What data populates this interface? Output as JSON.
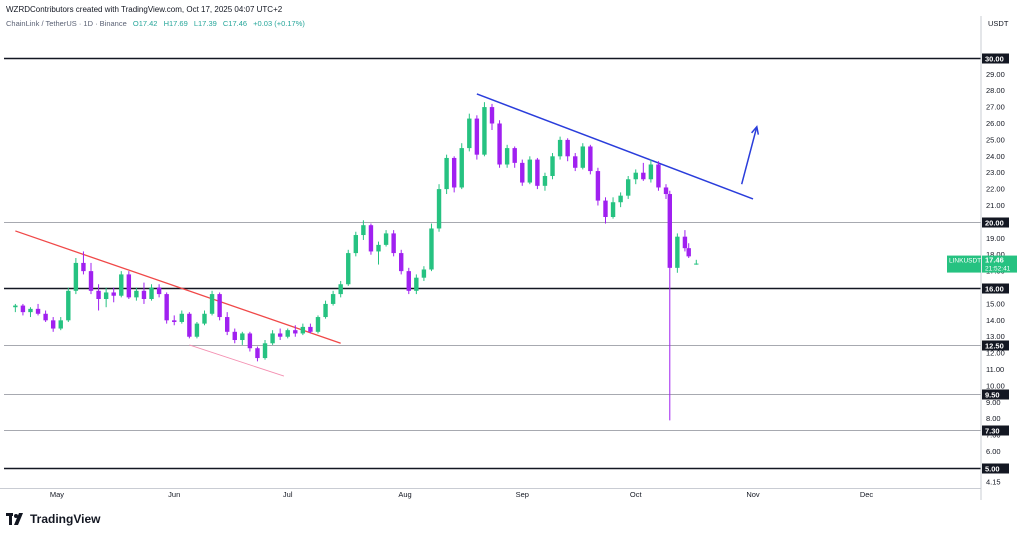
{
  "header": {
    "title": "WZRDContributors created with TradingView.com, Oct 17, 2025 04:07 UTC+2"
  },
  "ohlc": {
    "symbol": "ChainLink / TetherUS · 1D · Binance",
    "open": "O17.42",
    "high": "H17.69",
    "low": "L17.39",
    "close": "C17.46",
    "change": "+0.03 (+0.17%)"
  },
  "axis": {
    "unit": "USDT"
  },
  "price_label": {
    "symbol": "LINKUSDT",
    "price": "17.46",
    "countdown": "21:52:41"
  },
  "brand": {
    "name": "TradingView"
  },
  "colors": {
    "up": "#26c281",
    "down": "#a020f0",
    "red_line": "#f04848",
    "pink_line": "#f48fb1",
    "blue_line": "#2a3ddb",
    "level_line": "#131722",
    "price_tag": "#26c281"
  },
  "chart_data": {
    "type": "candlestick",
    "ylim": [
      3.9,
      31.7
    ],
    "y_ticks": [
      30.0,
      29.0,
      28.0,
      27.0,
      26.0,
      25.0,
      24.0,
      23.0,
      22.0,
      21.0,
      20.0,
      19.0,
      18.0,
      17.0,
      16.0,
      15.0,
      14.0,
      13.0,
      12.0,
      11.0,
      10.0,
      9.0,
      8.0,
      7.0,
      6.0,
      5.0
    ],
    "y_tick_labels": [
      "30.00",
      "29.00",
      "28.00",
      "27.00",
      "26.00",
      "25.00",
      "24.00",
      "23.00",
      "22.00",
      "21.00",
      "20.00",
      "19.00",
      "18.00",
      "17.00",
      "16.00",
      "15.00",
      "14.00",
      "13.00",
      "12.00",
      "11.00",
      "10.00",
      "9.00",
      "8.00",
      "7.00",
      "6.00",
      "5.00"
    ],
    "extra_tick": {
      "value": 4.15,
      "label": "4.15"
    },
    "x_labels": [
      {
        "label": "May",
        "date": "2025-05-01"
      },
      {
        "label": "Jun",
        "date": "2025-06-01"
      },
      {
        "label": "Jul",
        "date": "2025-07-01"
      },
      {
        "label": "Aug",
        "date": "2025-08-01"
      },
      {
        "label": "Sep",
        "date": "2025-09-01"
      },
      {
        "label": "Oct",
        "date": "2025-10-01"
      },
      {
        "label": "Nov",
        "date": "2025-11-01"
      },
      {
        "label": "Dec",
        "date": "2025-12-01"
      }
    ],
    "levels": [
      {
        "value": 30.0,
        "label": "30.00",
        "weight": "heavy"
      },
      {
        "value": 20.0,
        "label": "20.00",
        "weight": "light"
      },
      {
        "value": 16.0,
        "label": "16.00",
        "weight": "heavy"
      },
      {
        "value": 12.5,
        "label": "12.50",
        "weight": "light"
      },
      {
        "value": 9.5,
        "label": "9.50",
        "weight": "light"
      },
      {
        "value": 7.3,
        "label": "7.30",
        "weight": "light"
      },
      {
        "value": 5.0,
        "label": "5.00",
        "weight": "heavy"
      }
    ],
    "trendlines": [
      {
        "name": "red",
        "start": [
          "2025-04-20",
          19.45
        ],
        "end": [
          "2025-07-15",
          12.6
        ]
      },
      {
        "name": "pink",
        "start": [
          "2025-06-05",
          12.5
        ],
        "end": [
          "2025-06-30",
          10.6
        ]
      },
      {
        "name": "blue",
        "start": [
          "2025-08-20",
          27.8
        ],
        "end": [
          "2025-11-01",
          21.4
        ]
      }
    ],
    "arrow": {
      "start": [
        "2025-10-29",
        22.3
      ],
      "end": [
        "2025-11-02",
        25.8
      ]
    },
    "current_price": 17.46,
    "candles": [
      {
        "d": "2025-04-20",
        "o": 14.8,
        "h": 15.0,
        "l": 14.5,
        "c": 14.9
      },
      {
        "d": "2025-04-22",
        "o": 14.9,
        "h": 15.0,
        "l": 14.3,
        "c": 14.5
      },
      {
        "d": "2025-04-24",
        "o": 14.5,
        "h": 14.8,
        "l": 14.2,
        "c": 14.7
      },
      {
        "d": "2025-04-26",
        "o": 14.7,
        "h": 15.0,
        "l": 14.3,
        "c": 14.4
      },
      {
        "d": "2025-04-28",
        "o": 14.4,
        "h": 14.6,
        "l": 13.9,
        "c": 14.0
      },
      {
        "d": "2025-04-30",
        "o": 14.0,
        "h": 14.2,
        "l": 13.3,
        "c": 13.5
      },
      {
        "d": "2025-05-02",
        "o": 13.5,
        "h": 14.2,
        "l": 13.4,
        "c": 14.0
      },
      {
        "d": "2025-05-04",
        "o": 14.0,
        "h": 16.0,
        "l": 13.9,
        "c": 15.8
      },
      {
        "d": "2025-05-06",
        "o": 15.8,
        "h": 17.8,
        "l": 15.6,
        "c": 17.5
      },
      {
        "d": "2025-05-08",
        "o": 17.5,
        "h": 18.2,
        "l": 16.8,
        "c": 17.0
      },
      {
        "d": "2025-05-10",
        "o": 17.0,
        "h": 17.5,
        "l": 15.6,
        "c": 15.8
      },
      {
        "d": "2025-05-12",
        "o": 15.8,
        "h": 16.2,
        "l": 14.6,
        "c": 15.3
      },
      {
        "d": "2025-05-14",
        "o": 15.3,
        "h": 16.0,
        "l": 14.8,
        "c": 15.7
      },
      {
        "d": "2025-05-16",
        "o": 15.7,
        "h": 16.0,
        "l": 15.1,
        "c": 15.5
      },
      {
        "d": "2025-05-18",
        "o": 15.5,
        "h": 17.0,
        "l": 15.4,
        "c": 16.8
      },
      {
        "d": "2025-05-20",
        "o": 16.8,
        "h": 17.0,
        "l": 15.3,
        "c": 15.4
      },
      {
        "d": "2025-05-22",
        "o": 15.4,
        "h": 16.0,
        "l": 15.2,
        "c": 15.8
      },
      {
        "d": "2025-05-24",
        "o": 15.8,
        "h": 16.3,
        "l": 15.0,
        "c": 15.3
      },
      {
        "d": "2025-05-26",
        "o": 15.3,
        "h": 16.2,
        "l": 15.2,
        "c": 16.0
      },
      {
        "d": "2025-05-28",
        "o": 16.0,
        "h": 16.2,
        "l": 15.4,
        "c": 15.6
      },
      {
        "d": "2025-05-30",
        "o": 15.6,
        "h": 15.7,
        "l": 13.8,
        "c": 14.0
      },
      {
        "d": "2025-06-01",
        "o": 14.0,
        "h": 14.3,
        "l": 13.7,
        "c": 13.9
      },
      {
        "d": "2025-06-03",
        "o": 13.9,
        "h": 14.6,
        "l": 13.8,
        "c": 14.4
      },
      {
        "d": "2025-06-05",
        "o": 14.4,
        "h": 14.5,
        "l": 12.9,
        "c": 13.0
      },
      {
        "d": "2025-06-07",
        "o": 13.0,
        "h": 13.9,
        "l": 12.9,
        "c": 13.8
      },
      {
        "d": "2025-06-09",
        "o": 13.8,
        "h": 14.6,
        "l": 13.7,
        "c": 14.4
      },
      {
        "d": "2025-06-11",
        "o": 14.4,
        "h": 15.8,
        "l": 14.3,
        "c": 15.6
      },
      {
        "d": "2025-06-13",
        "o": 15.6,
        "h": 15.7,
        "l": 14.0,
        "c": 14.2
      },
      {
        "d": "2025-06-15",
        "o": 14.2,
        "h": 14.5,
        "l": 13.1,
        "c": 13.3
      },
      {
        "d": "2025-06-17",
        "o": 13.3,
        "h": 13.5,
        "l": 12.6,
        "c": 12.8
      },
      {
        "d": "2025-06-19",
        "o": 12.8,
        "h": 13.3,
        "l": 12.5,
        "c": 13.2
      },
      {
        "d": "2025-06-21",
        "o": 13.2,
        "h": 13.3,
        "l": 12.1,
        "c": 12.3
      },
      {
        "d": "2025-06-23",
        "o": 12.3,
        "h": 12.4,
        "l": 11.5,
        "c": 11.7
      },
      {
        "d": "2025-06-25",
        "o": 11.7,
        "h": 12.8,
        "l": 11.6,
        "c": 12.6
      },
      {
        "d": "2025-06-27",
        "o": 12.6,
        "h": 13.4,
        "l": 12.5,
        "c": 13.2
      },
      {
        "d": "2025-06-29",
        "o": 13.2,
        "h": 13.5,
        "l": 12.8,
        "c": 13.0
      },
      {
        "d": "2025-07-01",
        "o": 13.0,
        "h": 13.5,
        "l": 12.9,
        "c": 13.4
      },
      {
        "d": "2025-07-03",
        "o": 13.4,
        "h": 13.7,
        "l": 13.0,
        "c": 13.2
      },
      {
        "d": "2025-07-05",
        "o": 13.2,
        "h": 13.8,
        "l": 13.1,
        "c": 13.6
      },
      {
        "d": "2025-07-07",
        "o": 13.6,
        "h": 13.8,
        "l": 13.2,
        "c": 13.3
      },
      {
        "d": "2025-07-09",
        "o": 13.3,
        "h": 14.3,
        "l": 13.2,
        "c": 14.2
      },
      {
        "d": "2025-07-11",
        "o": 14.2,
        "h": 15.2,
        "l": 14.1,
        "c": 15.0
      },
      {
        "d": "2025-07-13",
        "o": 15.0,
        "h": 15.8,
        "l": 14.9,
        "c": 15.6
      },
      {
        "d": "2025-07-15",
        "o": 15.6,
        "h": 16.4,
        "l": 15.4,
        "c": 16.2
      },
      {
        "d": "2025-07-17",
        "o": 16.2,
        "h": 18.3,
        "l": 16.1,
        "c": 18.1
      },
      {
        "d": "2025-07-19",
        "o": 18.1,
        "h": 19.4,
        "l": 17.9,
        "c": 19.2
      },
      {
        "d": "2025-07-21",
        "o": 19.2,
        "h": 20.1,
        "l": 18.9,
        "c": 19.8
      },
      {
        "d": "2025-07-23",
        "o": 19.8,
        "h": 19.9,
        "l": 18.0,
        "c": 18.2
      },
      {
        "d": "2025-07-25",
        "o": 18.2,
        "h": 18.8,
        "l": 17.4,
        "c": 18.6
      },
      {
        "d": "2025-07-27",
        "o": 18.6,
        "h": 19.5,
        "l": 18.5,
        "c": 19.3
      },
      {
        "d": "2025-07-29",
        "o": 19.3,
        "h": 19.5,
        "l": 17.9,
        "c": 18.1
      },
      {
        "d": "2025-07-31",
        "o": 18.1,
        "h": 18.3,
        "l": 16.8,
        "c": 17.0
      },
      {
        "d": "2025-08-02",
        "o": 17.0,
        "h": 17.2,
        "l": 15.6,
        "c": 15.8
      },
      {
        "d": "2025-08-04",
        "o": 15.8,
        "h": 16.8,
        "l": 15.6,
        "c": 16.6
      },
      {
        "d": "2025-08-06",
        "o": 16.6,
        "h": 17.3,
        "l": 16.4,
        "c": 17.1
      },
      {
        "d": "2025-08-08",
        "o": 17.1,
        "h": 19.9,
        "l": 17.0,
        "c": 19.6
      },
      {
        "d": "2025-08-10",
        "o": 19.6,
        "h": 22.3,
        "l": 19.4,
        "c": 22.0
      },
      {
        "d": "2025-08-12",
        "o": 22.0,
        "h": 24.1,
        "l": 21.7,
        "c": 23.9
      },
      {
        "d": "2025-08-14",
        "o": 23.9,
        "h": 24.0,
        "l": 21.8,
        "c": 22.1
      },
      {
        "d": "2025-08-16",
        "o": 22.1,
        "h": 24.8,
        "l": 22.0,
        "c": 24.5
      },
      {
        "d": "2025-08-18",
        "o": 24.5,
        "h": 26.6,
        "l": 24.3,
        "c": 26.3
      },
      {
        "d": "2025-08-20",
        "o": 26.3,
        "h": 26.5,
        "l": 23.8,
        "c": 24.1
      },
      {
        "d": "2025-08-22",
        "o": 24.1,
        "h": 27.3,
        "l": 24.0,
        "c": 27.0
      },
      {
        "d": "2025-08-24",
        "o": 27.0,
        "h": 27.2,
        "l": 25.6,
        "c": 26.0
      },
      {
        "d": "2025-08-26",
        "o": 26.0,
        "h": 26.2,
        "l": 23.3,
        "c": 23.5
      },
      {
        "d": "2025-08-28",
        "o": 23.5,
        "h": 24.7,
        "l": 23.3,
        "c": 24.5
      },
      {
        "d": "2025-08-30",
        "o": 24.5,
        "h": 24.6,
        "l": 23.3,
        "c": 23.6
      },
      {
        "d": "2025-09-01",
        "o": 23.6,
        "h": 23.8,
        "l": 22.2,
        "c": 22.4
      },
      {
        "d": "2025-09-03",
        "o": 22.4,
        "h": 24.0,
        "l": 22.3,
        "c": 23.8
      },
      {
        "d": "2025-09-05",
        "o": 23.8,
        "h": 23.9,
        "l": 22.0,
        "c": 22.2
      },
      {
        "d": "2025-09-07",
        "o": 22.2,
        "h": 23.0,
        "l": 21.9,
        "c": 22.8
      },
      {
        "d": "2025-09-09",
        "o": 22.8,
        "h": 24.2,
        "l": 22.6,
        "c": 24.0
      },
      {
        "d": "2025-09-11",
        "o": 24.0,
        "h": 25.2,
        "l": 23.8,
        "c": 25.0
      },
      {
        "d": "2025-09-13",
        "o": 25.0,
        "h": 25.1,
        "l": 23.7,
        "c": 24.0
      },
      {
        "d": "2025-09-15",
        "o": 24.0,
        "h": 24.2,
        "l": 23.1,
        "c": 23.3
      },
      {
        "d": "2025-09-17",
        "o": 23.3,
        "h": 24.8,
        "l": 23.2,
        "c": 24.6
      },
      {
        "d": "2025-09-19",
        "o": 24.6,
        "h": 24.7,
        "l": 22.9,
        "c": 23.1
      },
      {
        "d": "2025-09-21",
        "o": 23.1,
        "h": 23.3,
        "l": 21.0,
        "c": 21.3
      },
      {
        "d": "2025-09-23",
        "o": 21.3,
        "h": 21.5,
        "l": 19.9,
        "c": 20.3
      },
      {
        "d": "2025-09-25",
        "o": 20.3,
        "h": 21.5,
        "l": 20.2,
        "c": 21.2
      },
      {
        "d": "2025-09-27",
        "o": 21.2,
        "h": 21.8,
        "l": 20.9,
        "c": 21.6
      },
      {
        "d": "2025-09-29",
        "o": 21.6,
        "h": 22.8,
        "l": 21.4,
        "c": 22.6
      },
      {
        "d": "2025-10-01",
        "o": 22.6,
        "h": 23.2,
        "l": 22.3,
        "c": 23.0
      },
      {
        "d": "2025-10-03",
        "o": 23.0,
        "h": 23.6,
        "l": 22.5,
        "c": 22.6
      },
      {
        "d": "2025-10-05",
        "o": 22.6,
        "h": 23.8,
        "l": 22.4,
        "c": 23.5
      },
      {
        "d": "2025-10-07",
        "o": 23.5,
        "h": 23.7,
        "l": 21.9,
        "c": 22.1
      },
      {
        "d": "2025-10-09",
        "o": 22.1,
        "h": 22.3,
        "l": 21.4,
        "c": 21.7
      },
      {
        "d": "2025-10-10",
        "o": 21.7,
        "h": 21.9,
        "l": 7.9,
        "c": 17.2
      },
      {
        "d": "2025-10-12",
        "o": 17.2,
        "h": 19.3,
        "l": 16.9,
        "c": 19.1
      },
      {
        "d": "2025-10-14",
        "o": 19.1,
        "h": 19.5,
        "l": 18.2,
        "c": 18.4
      },
      {
        "d": "2025-10-15",
        "o": 18.4,
        "h": 18.7,
        "l": 17.8,
        "c": 17.9
      },
      {
        "d": "2025-10-17",
        "o": 17.42,
        "h": 17.69,
        "l": 17.39,
        "c": 17.46
      }
    ]
  }
}
